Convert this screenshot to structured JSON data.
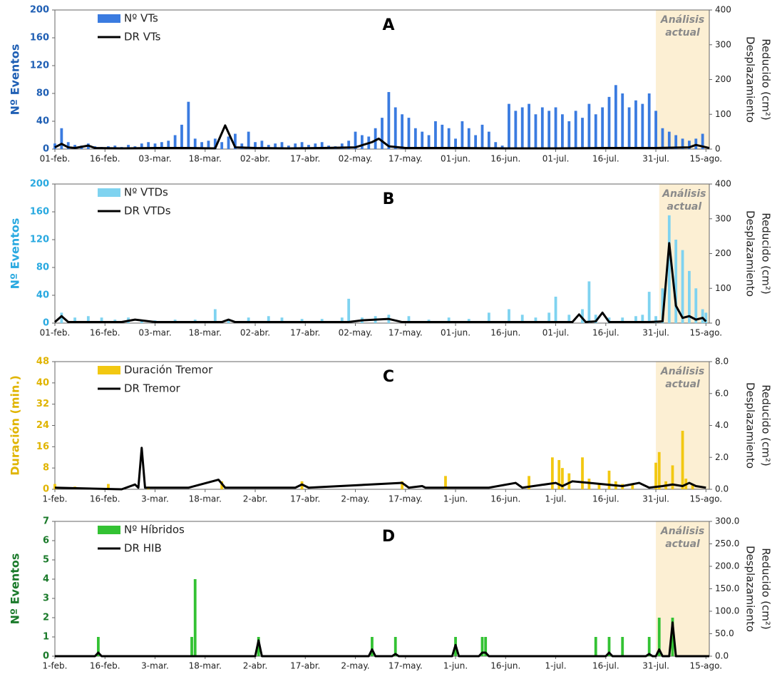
{
  "chart_data": [
    {
      "type": "combo",
      "title": "A",
      "ylabel": "Nº Eventos",
      "ylabel_color": "#1f5fb4",
      "y2label": [
        "Desplazamiento",
        "Reducido (cm²)"
      ],
      "annotation": [
        "Análisis",
        "actual"
      ],
      "highlight_x": [
        180,
        196
      ],
      "xlim": [
        0,
        196
      ],
      "ylim": [
        0,
        200
      ],
      "yticks": [
        0,
        40,
        80,
        120,
        160,
        200
      ],
      "y2lim": [
        0,
        400
      ],
      "y2ticks": [
        0,
        100,
        200,
        300,
        400
      ],
      "xticks": [
        {
          "value": 0,
          "label": "01-feb."
        },
        {
          "value": 15,
          "label": "16-feb."
        },
        {
          "value": 30,
          "label": "03-mar."
        },
        {
          "value": 45,
          "label": "18-mar."
        },
        {
          "value": 60,
          "label": "02-abr."
        },
        {
          "value": 75,
          "label": "17-abr."
        },
        {
          "value": 90,
          "label": "02-may."
        },
        {
          "value": 105,
          "label": "17-may."
        },
        {
          "value": 120,
          "label": "01-jun."
        },
        {
          "value": 135,
          "label": "16-jun."
        },
        {
          "value": 150,
          "label": "01-jul."
        },
        {
          "value": 165,
          "label": "16-jul."
        },
        {
          "value": 180,
          "label": "31-jul."
        },
        {
          "value": 195,
          "label": "15-ago."
        }
      ],
      "series": [
        {
          "name": "Nº VTs",
          "kind": "bar",
          "color": "#3a7be0",
          "x": [
            0,
            2,
            4,
            6,
            8,
            10,
            12,
            14,
            16,
            18,
            20,
            22,
            24,
            26,
            28,
            30,
            32,
            34,
            36,
            38,
            40,
            42,
            44,
            46,
            48,
            50,
            52,
            54,
            56,
            58,
            60,
            62,
            64,
            66,
            68,
            70,
            72,
            74,
            76,
            78,
            80,
            82,
            84,
            86,
            88,
            90,
            92,
            94,
            96,
            98,
            100,
            102,
            104,
            106,
            108,
            110,
            112,
            114,
            116,
            118,
            120,
            122,
            124,
            126,
            128,
            130,
            132,
            134,
            136,
            138,
            140,
            142,
            144,
            146,
            148,
            150,
            152,
            154,
            156,
            158,
            160,
            162,
            164,
            166,
            168,
            170,
            172,
            174,
            176,
            178,
            180,
            182,
            184,
            186,
            188,
            190,
            192,
            194
          ],
          "values": [
            8,
            30,
            10,
            6,
            5,
            8,
            4,
            3,
            4,
            5,
            3,
            6,
            4,
            8,
            10,
            8,
            10,
            12,
            20,
            35,
            68,
            15,
            10,
            12,
            15,
            10,
            18,
            22,
            8,
            25,
            10,
            12,
            6,
            8,
            10,
            5,
            8,
            10,
            6,
            8,
            10,
            5,
            4,
            8,
            12,
            25,
            20,
            18,
            30,
            45,
            82,
            60,
            50,
            45,
            30,
            25,
            20,
            40,
            35,
            30,
            15,
            40,
            30,
            20,
            35,
            25,
            10,
            5,
            65,
            55,
            60,
            65,
            50,
            60,
            55,
            60,
            50,
            40,
            55,
            45,
            65,
            50,
            60,
            75,
            92,
            80,
            60,
            70,
            65,
            80,
            55,
            30,
            25,
            20,
            15,
            12,
            15,
            22
          ]
        },
        {
          "name": "DR VTs",
          "kind": "line",
          "axis": "y2",
          "color": "#000000",
          "x": [
            0,
            2,
            4,
            6,
            10,
            12,
            20,
            30,
            40,
            48,
            51,
            54,
            60,
            70,
            80,
            90,
            95,
            97,
            100,
            105,
            120,
            135,
            150,
            165,
            180,
            190,
            192,
            196
          ],
          "values": [
            5,
            15,
            5,
            3,
            10,
            3,
            2,
            3,
            3,
            2,
            68,
            5,
            3,
            2,
            3,
            5,
            20,
            30,
            8,
            3,
            3,
            2,
            2,
            3,
            3,
            5,
            12,
            3
          ]
        }
      ]
    },
    {
      "type": "combo",
      "title": "B",
      "ylabel": "Nº Eventos",
      "ylabel_color": "#29a9e0",
      "y2label": [
        "Desplazamiento",
        "Reducido (cm²)"
      ],
      "annotation": [
        "Análisis",
        "actual"
      ],
      "highlight_x": [
        181,
        196
      ],
      "xlim": [
        0,
        196
      ],
      "ylim": [
        0,
        200
      ],
      "yticks": [
        0,
        40,
        80,
        120,
        160,
        200
      ],
      "y2lim": [
        0,
        400
      ],
      "y2ticks": [
        0,
        100,
        200,
        300,
        400
      ],
      "xticks": [
        {
          "value": 0,
          "label": "01-feb."
        },
        {
          "value": 15,
          "label": "16-feb."
        },
        {
          "value": 30,
          "label": "03-mar."
        },
        {
          "value": 45,
          "label": "18-mar."
        },
        {
          "value": 60,
          "label": "02-abr."
        },
        {
          "value": 75,
          "label": "17-abr."
        },
        {
          "value": 90,
          "label": "02-may."
        },
        {
          "value": 105,
          "label": "17-may."
        },
        {
          "value": 120,
          "label": "01-jun."
        },
        {
          "value": 135,
          "label": "16-jun."
        },
        {
          "value": 150,
          "label": "01-jul."
        },
        {
          "value": 165,
          "label": "16-jul."
        },
        {
          "value": 180,
          "label": "31-jul."
        },
        {
          "value": 195,
          "label": "15-ago."
        }
      ],
      "series": [
        {
          "name": "Nº VTDs",
          "kind": "bar",
          "color": "#7fd3f0",
          "x": [
            2,
            6,
            10,
            14,
            18,
            22,
            26,
            30,
            36,
            42,
            48,
            52,
            58,
            64,
            68,
            74,
            80,
            86,
            88,
            92,
            96,
            100,
            106,
            112,
            118,
            124,
            130,
            136,
            140,
            144,
            148,
            150,
            154,
            158,
            160,
            162,
            166,
            170,
            174,
            176,
            178,
            180,
            182,
            184,
            186,
            188,
            190,
            192,
            194,
            195
          ],
          "values": [
            15,
            8,
            10,
            8,
            5,
            8,
            5,
            4,
            5,
            5,
            20,
            6,
            8,
            10,
            8,
            6,
            6,
            8,
            35,
            8,
            10,
            12,
            10,
            5,
            8,
            6,
            15,
            20,
            12,
            8,
            15,
            38,
            12,
            20,
            60,
            12,
            8,
            8,
            10,
            12,
            45,
            10,
            50,
            155,
            120,
            105,
            75,
            50,
            20,
            15
          ]
        },
        {
          "name": "DR VTDs",
          "kind": "line",
          "axis": "y2",
          "color": "#000000",
          "x": [
            0,
            2,
            4,
            20,
            24,
            30,
            50,
            52,
            54,
            88,
            92,
            100,
            104,
            140,
            155,
            157,
            159,
            162,
            164,
            166,
            178,
            182,
            184,
            186,
            188,
            190,
            192,
            194,
            195
          ],
          "values": [
            3,
            20,
            3,
            3,
            10,
            3,
            3,
            10,
            3,
            3,
            8,
            12,
            3,
            3,
            3,
            25,
            3,
            5,
            30,
            3,
            3,
            5,
            230,
            50,
            15,
            20,
            10,
            15,
            5
          ]
        }
      ]
    },
    {
      "type": "combo",
      "title": "C",
      "ylabel": "Duración (min.)",
      "ylabel_color": "#e0b400",
      "y2label": [
        "Desplazamiento",
        "Reducido (cm²)"
      ],
      "annotation": [
        "Análisis",
        "actual"
      ],
      "highlight_x": [
        180,
        196
      ],
      "xlim": [
        0,
        196
      ],
      "ylim": [
        0,
        48
      ],
      "yticks": [
        0,
        8,
        16,
        24,
        32,
        40,
        48
      ],
      "y2lim": [
        0,
        8
      ],
      "y2ticks": [
        {
          "value": 0,
          "label": "0.0"
        },
        {
          "value": 2,
          "label": "2.0"
        },
        {
          "value": 4,
          "label": "4.0"
        },
        {
          "value": 6,
          "label": "6.0"
        },
        {
          "value": 8,
          "label": "8.0"
        }
      ],
      "xticks": [
        {
          "value": 0,
          "label": "1-feb."
        },
        {
          "value": 15,
          "label": "16-feb."
        },
        {
          "value": 30,
          "label": "3-mar."
        },
        {
          "value": 45,
          "label": "18-mar."
        },
        {
          "value": 60,
          "label": "2-abr."
        },
        {
          "value": 75,
          "label": "17-abr."
        },
        {
          "value": 90,
          "label": "2-may."
        },
        {
          "value": 105,
          "label": "17-may."
        },
        {
          "value": 120,
          "label": "1-jun."
        },
        {
          "value": 135,
          "label": "16-jun."
        },
        {
          "value": 150,
          "label": "1-jul."
        },
        {
          "value": 165,
          "label": "16-jul."
        },
        {
          "value": 180,
          "label": "31-jul."
        },
        {
          "value": 195,
          "label": "15-ago."
        }
      ],
      "series": [
        {
          "name": "Duración Tremor",
          "kind": "bar",
          "color": "#f2c811",
          "x": [
            0,
            6,
            16,
            28,
            50,
            74,
            104,
            117,
            142,
            149,
            151,
            152,
            154,
            158,
            160,
            163,
            166,
            168,
            170,
            173,
            180,
            181,
            183,
            185,
            188,
            189,
            191
          ],
          "values": [
            2,
            1,
            2,
            1,
            3,
            3,
            3,
            5,
            5,
            12,
            11,
            8,
            6,
            12,
            4,
            2,
            7,
            3,
            2,
            2,
            10,
            14,
            3,
            9,
            22,
            4,
            2
          ]
        },
        {
          "name": "DR Tremor",
          "kind": "line",
          "axis": "y2",
          "color": "#000000",
          "x": [
            0,
            20,
            24,
            25,
            26,
            27,
            40,
            49,
            51,
            72,
            74,
            76,
            104,
            106,
            110,
            111,
            130,
            138,
            140,
            150,
            152,
            155,
            160,
            165,
            170,
            175,
            178,
            182,
            185,
            188,
            190,
            192,
            195
          ],
          "values": [
            0.1,
            0,
            0.3,
            0.1,
            2.6,
            0.1,
            0.1,
            0.6,
            0.1,
            0.1,
            0.3,
            0.1,
            0.4,
            0.1,
            0.2,
            0.1,
            0.1,
            0.4,
            0.1,
            0.4,
            0.2,
            0.5,
            0.4,
            0.3,
            0.2,
            0.4,
            0.1,
            0.2,
            0.3,
            0.2,
            0.4,
            0.2,
            0.1
          ]
        }
      ]
    },
    {
      "type": "combo",
      "title": "D",
      "ylabel": "Nº Eventos",
      "ylabel_color": "#1a7a2a",
      "y2label": [
        "Desplazamiento",
        "Reducido (cm²)"
      ],
      "annotation": [
        "Análisis",
        "actual"
      ],
      "highlight_x": [
        180,
        196
      ],
      "xlim": [
        0,
        196
      ],
      "ylim": [
        0,
        7
      ],
      "yticks": [
        0,
        1,
        2,
        3,
        4,
        5,
        6,
        7
      ],
      "y2lim": [
        0,
        300
      ],
      "y2ticks": [
        {
          "value": 0,
          "label": "0.0"
        },
        {
          "value": 50,
          "label": "50.0"
        },
        {
          "value": 100,
          "label": "100.0"
        },
        {
          "value": 150,
          "label": "150.0"
        },
        {
          "value": 200,
          "label": "200.0"
        },
        {
          "value": 250,
          "label": "250.0"
        },
        {
          "value": 300,
          "label": "300.0"
        }
      ],
      "xticks": [
        {
          "value": 0,
          "label": "1-feb."
        },
        {
          "value": 15,
          "label": "16-feb."
        },
        {
          "value": 30,
          "label": "3-mar."
        },
        {
          "value": 45,
          "label": "18-mar."
        },
        {
          "value": 60,
          "label": "2-abr."
        },
        {
          "value": 75,
          "label": "17-abr."
        },
        {
          "value": 90,
          "label": "2-may."
        },
        {
          "value": 105,
          "label": "17-may."
        },
        {
          "value": 120,
          "label": "1-jun."
        },
        {
          "value": 135,
          "label": "16-jun."
        },
        {
          "value": 150,
          "label": "1-jul."
        },
        {
          "value": 165,
          "label": "16-jul."
        },
        {
          "value": 180,
          "label": "31-jul."
        },
        {
          "value": 195,
          "label": "15-ago."
        }
      ],
      "series": [
        {
          "name": "Nº Híbridos",
          "kind": "bar",
          "color": "#33c233",
          "x": [
            13,
            41,
            42,
            61,
            95,
            102,
            120,
            128,
            129,
            162,
            166,
            170,
            178,
            181,
            185
          ],
          "values": [
            1,
            1,
            4,
            1,
            1,
            1,
            1,
            1,
            1,
            1,
            1,
            1,
            1,
            2,
            2
          ]
        },
        {
          "name": "DR HIB",
          "kind": "line",
          "axis": "y2",
          "color": "#000000",
          "x": [
            0,
            12,
            13,
            14,
            60,
            61,
            62,
            94,
            95,
            96,
            101,
            102,
            103,
            119,
            120,
            121,
            127,
            128,
            129,
            130,
            165,
            166,
            167,
            177,
            178,
            179,
            180,
            181,
            182,
            184,
            185,
            186,
            196
          ],
          "values": [
            0,
            0,
            8,
            0,
            0,
            35,
            0,
            0,
            15,
            0,
            0,
            5,
            0,
            0,
            25,
            0,
            0,
            8,
            8,
            0,
            0,
            8,
            0,
            0,
            5,
            0,
            0,
            15,
            0,
            0,
            75,
            0,
            0
          ]
        }
      ]
    }
  ]
}
